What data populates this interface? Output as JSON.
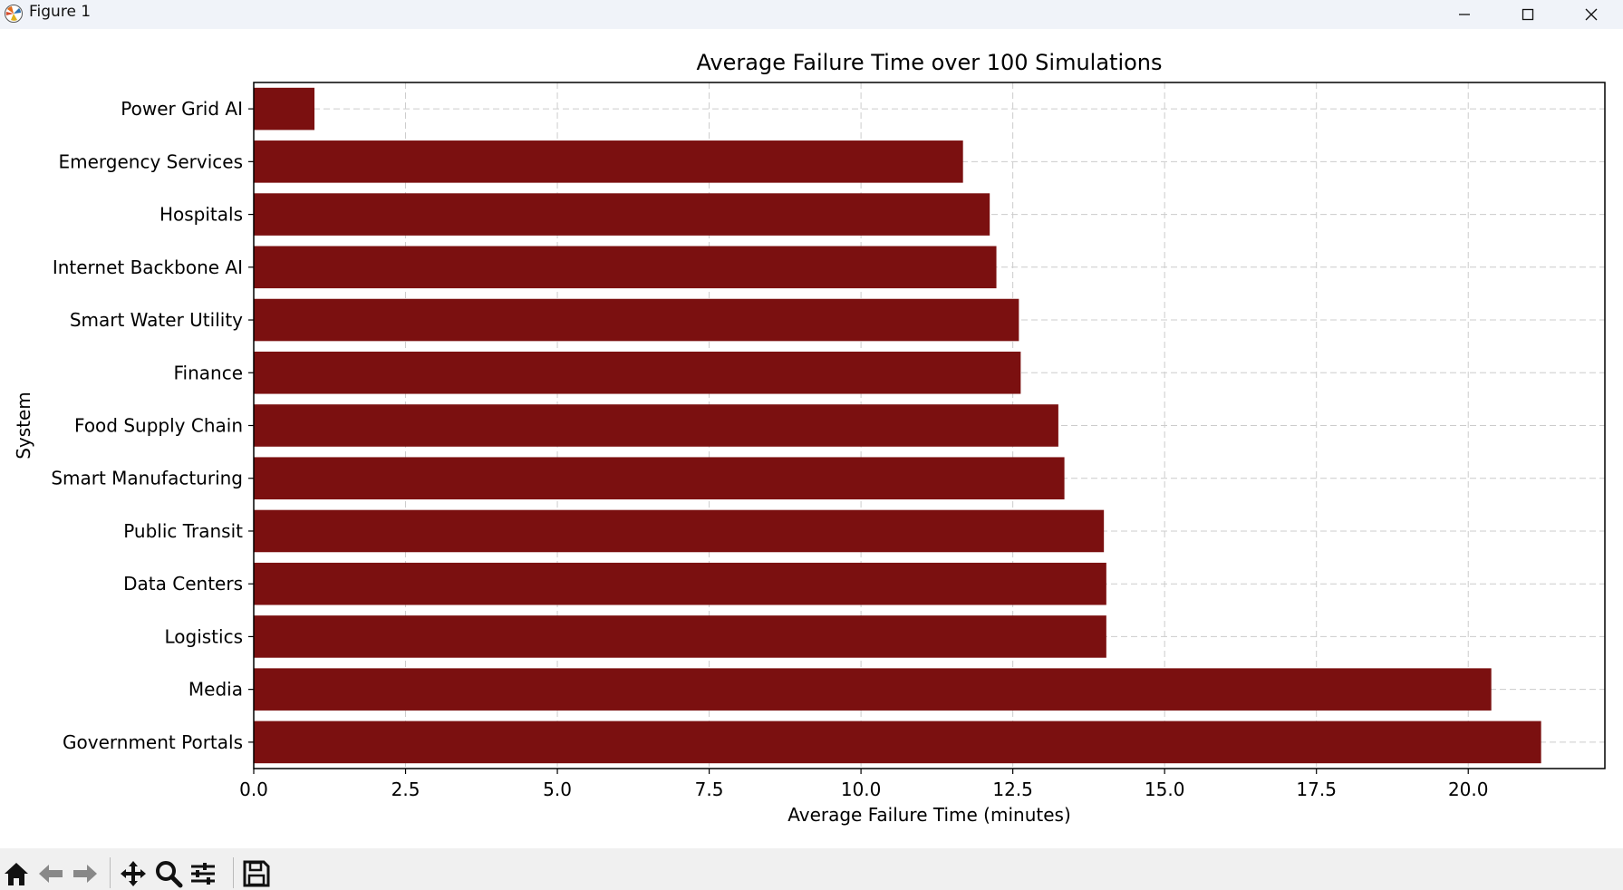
{
  "window": {
    "title": "Figure 1"
  },
  "toolbar": {
    "items": [
      "home-icon",
      "back-arrow-icon",
      "forward-arrow-icon",
      "pan-icon",
      "zoom-icon",
      "configure-subplots-icon",
      "save-icon"
    ]
  },
  "colors": {
    "bar": "#7b1010",
    "grid": "#cccccc",
    "titlebar": "#f0f3f9",
    "toolbar": "#f0f0f0"
  },
  "chart_data": {
    "type": "bar",
    "orientation": "horizontal",
    "title": "Average Failure Time over 100 Simulations",
    "xlabel": "Average Failure Time (minutes)",
    "ylabel": "System",
    "categories": [
      "Power Grid AI",
      "Emergency Services",
      "Hospitals",
      "Internet Backbone AI",
      "Smart Water Utility",
      "Finance",
      "Food Supply Chain",
      "Smart Manufacturing",
      "Public Transit",
      "Data Centers",
      "Logistics",
      "Media",
      "Government Portals"
    ],
    "values": [
      1.0,
      11.68,
      12.12,
      12.23,
      12.6,
      12.63,
      13.25,
      13.35,
      14.0,
      14.04,
      14.04,
      20.38,
      21.2
    ],
    "xlim": [
      0,
      22.25
    ],
    "xticks": [
      "0.0",
      "2.5",
      "5.0",
      "7.5",
      "10.0",
      "12.5",
      "15.0",
      "17.5",
      "20.0"
    ],
    "xtick_values": [
      0,
      2.5,
      5,
      7.5,
      10,
      12.5,
      15,
      17.5,
      20
    ],
    "grid": true,
    "grid_style": "dashed"
  }
}
